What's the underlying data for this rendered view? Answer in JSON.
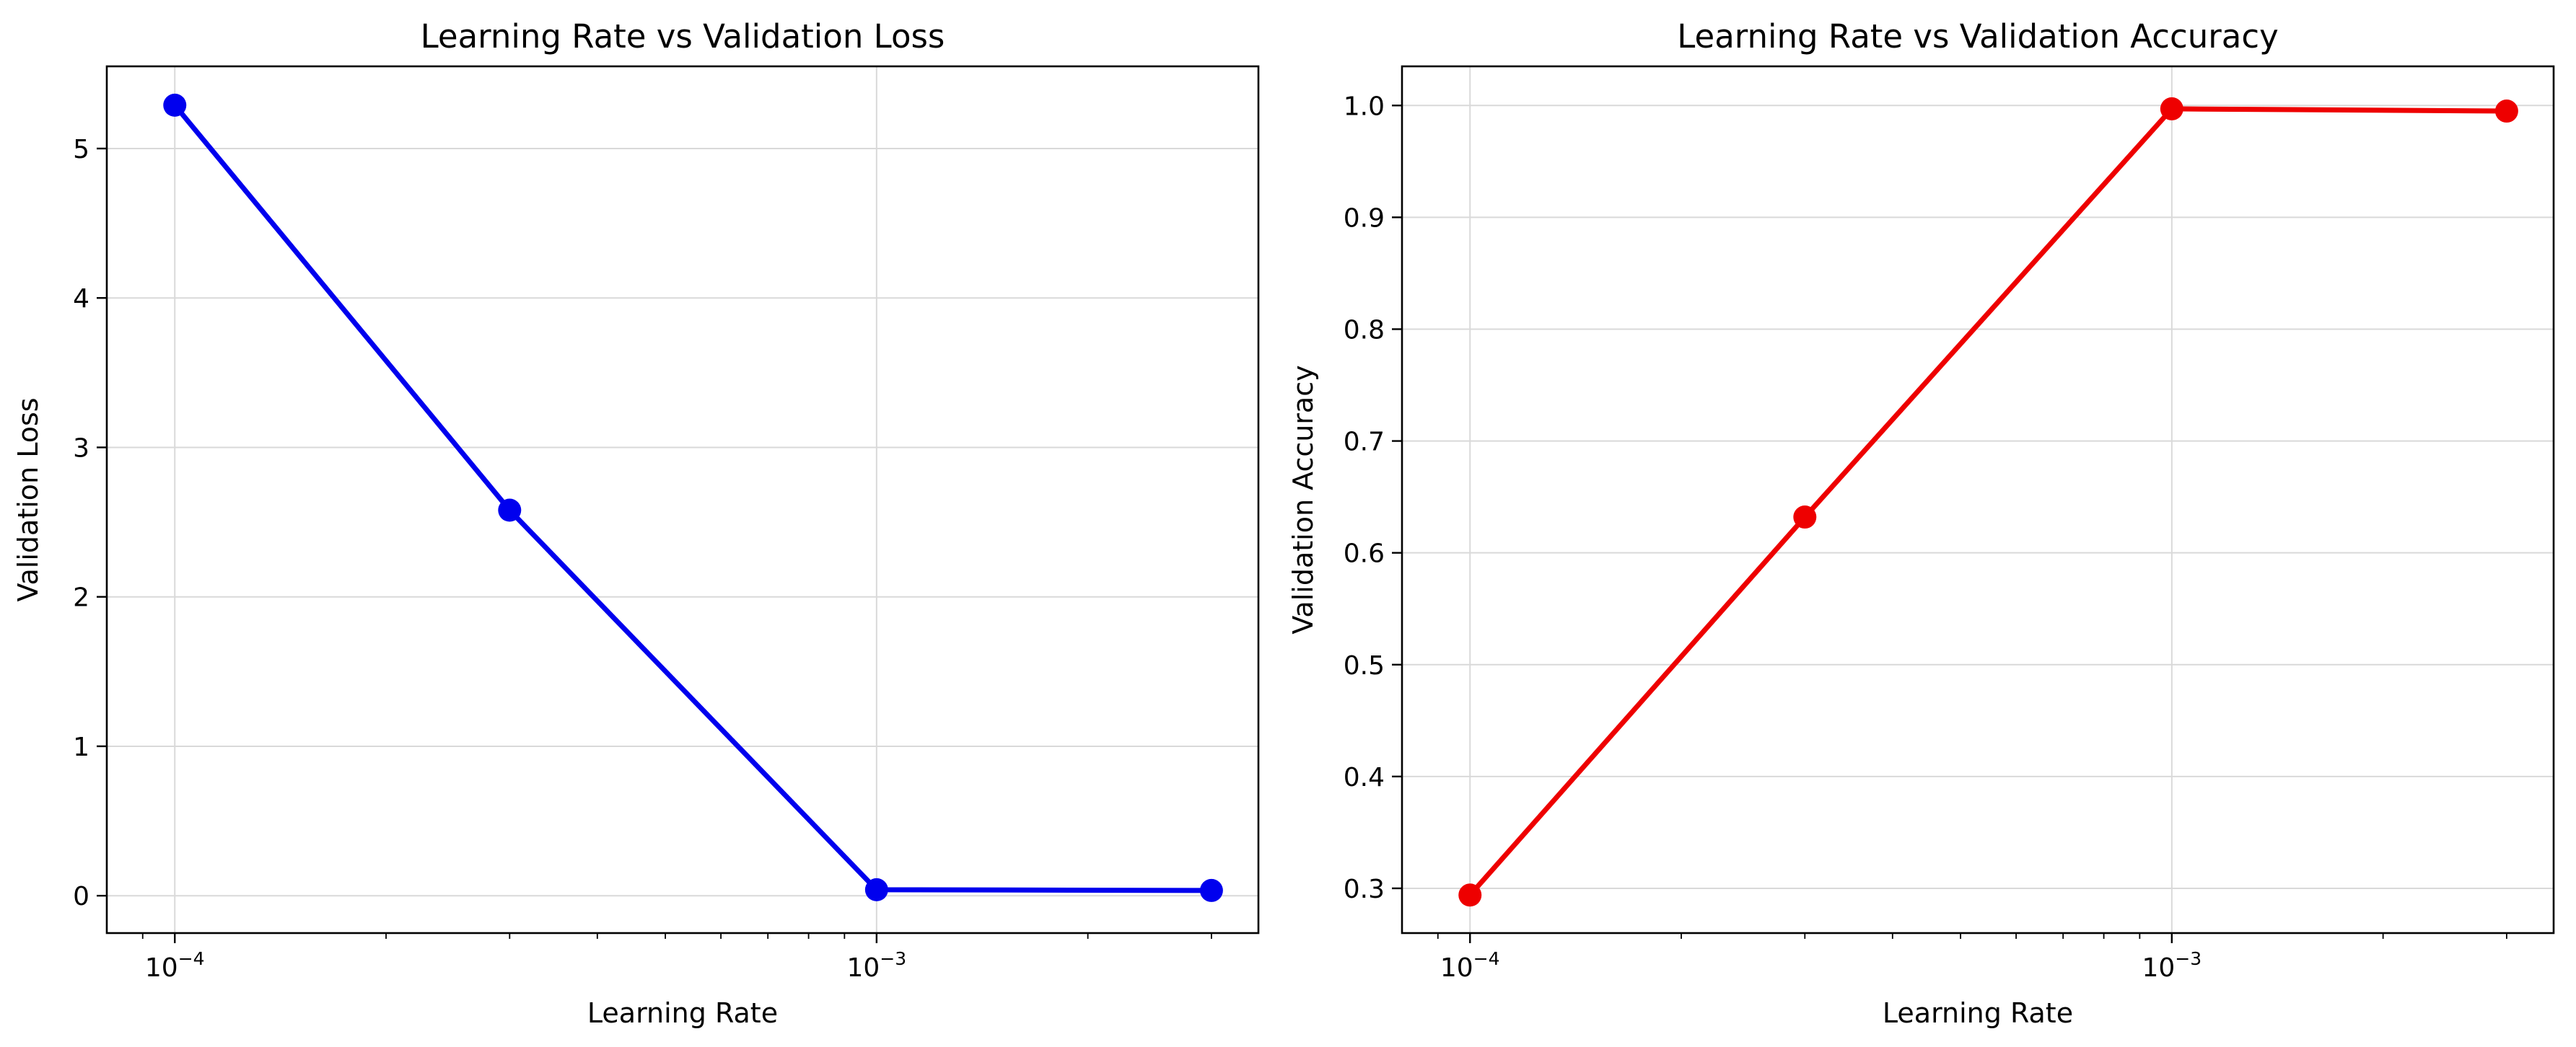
{
  "chart_data": [
    {
      "type": "line",
      "title": "Learning Rate vs Validation Loss",
      "xlabel": "Learning Rate",
      "ylabel": "Validation Loss",
      "xscale": "log",
      "xlim": [
        8e-05,
        0.0035
      ],
      "ylim": [
        -0.25,
        5.55
      ],
      "xticks": [
        {
          "base": "10",
          "exp": "−4",
          "value": 0.0001
        },
        {
          "base": "10",
          "exp": "−3",
          "value": 0.001
        }
      ],
      "yticks": [
        {
          "label": "0",
          "value": 0
        },
        {
          "label": "1",
          "value": 1
        },
        {
          "label": "2",
          "value": 2
        },
        {
          "label": "3",
          "value": 3
        },
        {
          "label": "4",
          "value": 4
        },
        {
          "label": "5",
          "value": 5
        }
      ],
      "grid": true,
      "series": [
        {
          "color": "#0000ee",
          "x": [
            0.0001,
            0.0003,
            0.001,
            0.003
          ],
          "y": [
            5.29,
            2.58,
            0.04,
            0.035
          ]
        }
      ]
    },
    {
      "type": "line",
      "title": "Learning Rate vs Validation Accuracy",
      "xlabel": "Learning Rate",
      "ylabel": "Validation Accuracy",
      "xscale": "log",
      "xlim": [
        8e-05,
        0.0035
      ],
      "ylim": [
        0.26,
        1.035
      ],
      "xticks": [
        {
          "base": "10",
          "exp": "−4",
          "value": 0.0001
        },
        {
          "base": "10",
          "exp": "−3",
          "value": 0.001
        }
      ],
      "yticks": [
        {
          "label": "0.3",
          "value": 0.3
        },
        {
          "label": "0.4",
          "value": 0.4
        },
        {
          "label": "0.5",
          "value": 0.5
        },
        {
          "label": "0.6",
          "value": 0.6
        },
        {
          "label": "0.7",
          "value": 0.7
        },
        {
          "label": "0.8",
          "value": 0.8
        },
        {
          "label": "0.9",
          "value": 0.9
        },
        {
          "label": "1.0",
          "value": 1.0
        }
      ],
      "grid": true,
      "series": [
        {
          "color": "#ee0000",
          "x": [
            0.0001,
            0.0003,
            0.001,
            0.003
          ],
          "y": [
            0.294,
            0.632,
            0.997,
            0.995
          ]
        }
      ]
    }
  ]
}
